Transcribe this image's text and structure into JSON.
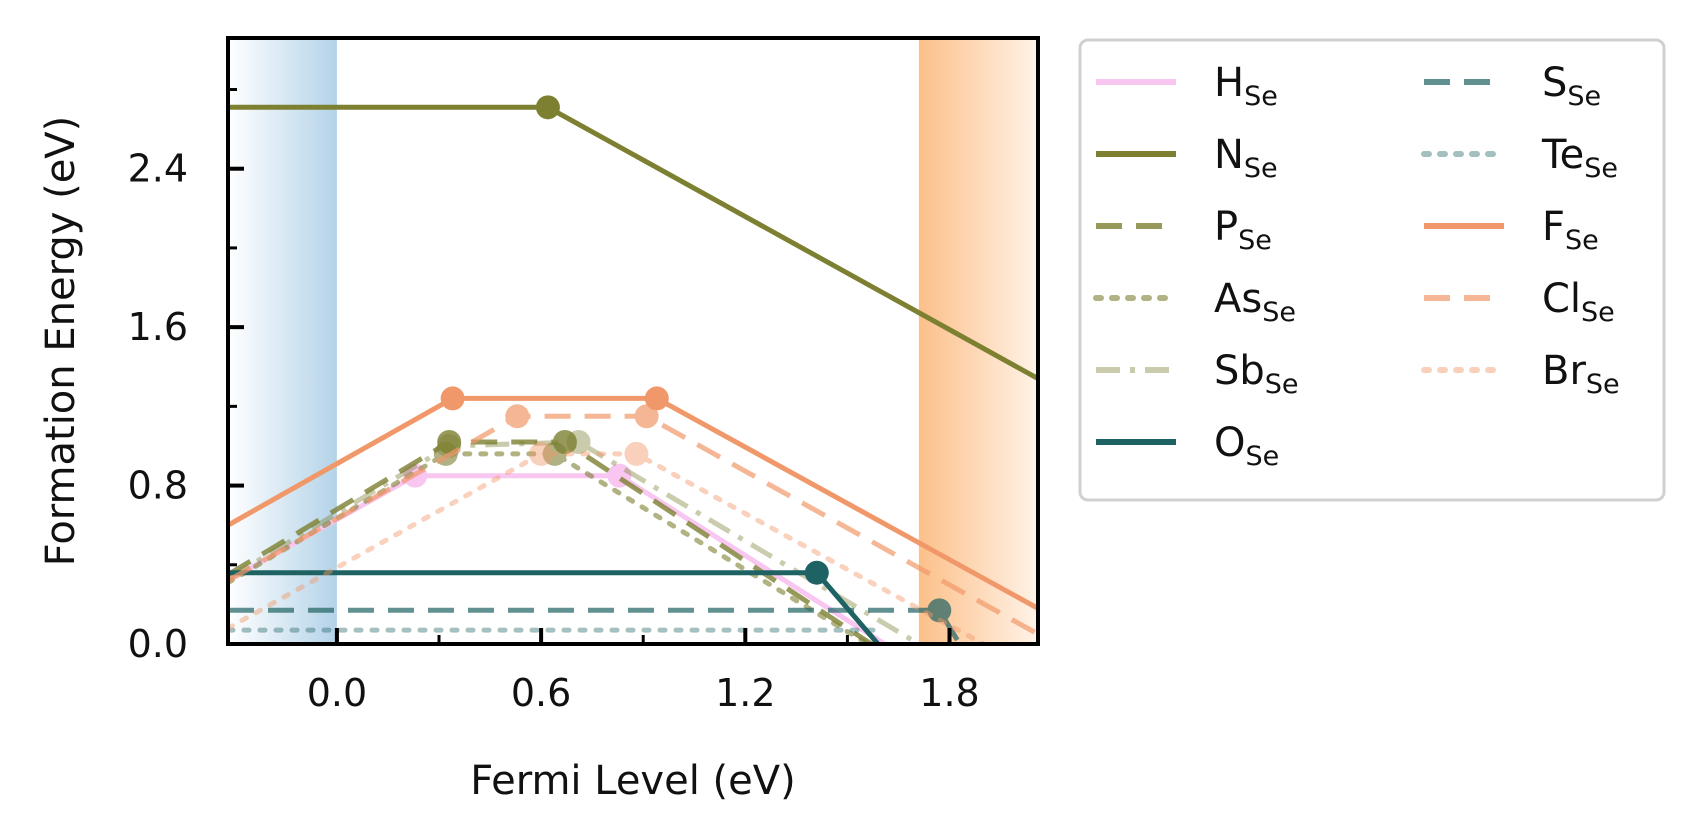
{
  "chart_data": {
    "type": "line",
    "xlabel": "Fermi Level (eV)",
    "ylabel": "Formation Energy (eV)",
    "xlim": [
      -0.32,
      2.06
    ],
    "ylim": [
      0.0,
      3.06
    ],
    "xticks": [
      0.0,
      0.6,
      1.2,
      1.8
    ],
    "xtick_labels": [
      "0.0",
      "0.6",
      "1.2",
      "1.8"
    ],
    "yticks": [
      0.0,
      0.8,
      1.6,
      2.4
    ],
    "ytick_labels": [
      "0.0",
      "0.8",
      "1.6",
      "2.4"
    ],
    "grid": false,
    "legend_position": "outside-right",
    "bands": [
      {
        "name": "valence-band-region",
        "x0": -0.32,
        "x1": 0.0,
        "color": "#b4d3e8",
        "fade_to": "left"
      },
      {
        "name": "conduction-band-region",
        "x0": 1.71,
        "x1": 2.06,
        "color": "#fcc08a",
        "fade_to": "right"
      }
    ],
    "series": [
      {
        "name": "H",
        "sub": "Se",
        "color": "#f8c6f0",
        "dash": "solid",
        "opacity": 1.0,
        "width": 5,
        "points": [
          [
            -0.32,
            0.32
          ],
          [
            0.23,
            0.85
          ],
          [
            0.83,
            0.85
          ],
          [
            1.61,
            0.0
          ]
        ],
        "markers": [
          [
            0.23,
            0.85
          ],
          [
            0.83,
            0.85
          ]
        ]
      },
      {
        "name": "N",
        "sub": "Se",
        "color": "#7d8031",
        "dash": "solid",
        "opacity": 1.0,
        "width": 5,
        "points": [
          [
            -0.32,
            2.71
          ],
          [
            0.62,
            2.71
          ],
          [
            2.06,
            1.34
          ]
        ],
        "markers": [
          [
            0.62,
            2.71
          ]
        ]
      },
      {
        "name": "P",
        "sub": "Se",
        "color": "#7d8031",
        "dash": "dashed",
        "opacity": 0.8,
        "width": 5,
        "points": [
          [
            -0.32,
            0.35
          ],
          [
            0.33,
            1.02
          ],
          [
            0.67,
            1.02
          ],
          [
            1.57,
            0.0
          ]
        ],
        "markers": [
          [
            0.33,
            1.02
          ],
          [
            0.67,
            1.02
          ]
        ]
      },
      {
        "name": "As",
        "sub": "Se",
        "color": "#7d8031",
        "dash": "dotted",
        "opacity": 0.6,
        "width": 5,
        "points": [
          [
            -0.32,
            0.31
          ],
          [
            0.32,
            0.96
          ],
          [
            0.64,
            0.96
          ],
          [
            1.56,
            0.0
          ]
        ],
        "markers": [
          [
            0.32,
            0.96
          ],
          [
            0.64,
            0.96
          ]
        ]
      },
      {
        "name": "Sb",
        "sub": "Se",
        "color": "#7d8031",
        "dash": "dashdot",
        "opacity": 0.4,
        "width": 5,
        "points": [
          [
            -0.32,
            0.33
          ],
          [
            0.33,
            1.0
          ],
          [
            0.71,
            1.02
          ],
          [
            1.71,
            0.0
          ]
        ],
        "markers": [
          [
            0.33,
            1.0
          ],
          [
            0.71,
            1.02
          ]
        ]
      },
      {
        "name": "O",
        "sub": "Se",
        "color": "#1f6263",
        "dash": "solid",
        "opacity": 1.0,
        "width": 5,
        "points": [
          [
            -0.32,
            0.36
          ],
          [
            1.41,
            0.36
          ],
          [
            1.59,
            0.0
          ]
        ],
        "markers": [
          [
            1.41,
            0.36
          ]
        ]
      },
      {
        "name": "S",
        "sub": "Se",
        "color": "#1f6263",
        "dash": "dashed",
        "opacity": 0.7,
        "width": 5,
        "points": [
          [
            -0.32,
            0.17
          ],
          [
            1.77,
            0.17
          ],
          [
            1.83,
            0.0
          ]
        ],
        "markers": [
          [
            1.77,
            0.17
          ]
        ]
      },
      {
        "name": "Te",
        "sub": "Se",
        "color": "#1f6263",
        "dash": "dotted",
        "opacity": 0.4,
        "width": 5,
        "points": [
          [
            -0.32,
            0.07
          ],
          [
            1.6,
            0.07
          ]
        ],
        "markers": []
      },
      {
        "name": "F",
        "sub": "Se",
        "color": "#f1986a",
        "dash": "solid",
        "opacity": 1.0,
        "width": 5,
        "points": [
          [
            -0.32,
            0.6
          ],
          [
            0.34,
            1.24
          ],
          [
            0.94,
            1.24
          ],
          [
            2.06,
            0.18
          ]
        ],
        "markers": [
          [
            0.34,
            1.24
          ],
          [
            0.94,
            1.24
          ]
        ]
      },
      {
        "name": "Cl",
        "sub": "Se",
        "color": "#f1986a",
        "dash": "dashed",
        "opacity": 0.7,
        "width": 5,
        "points": [
          [
            -0.32,
            0.32
          ],
          [
            0.53,
            1.15
          ],
          [
            0.91,
            1.15
          ],
          [
            2.06,
            0.05
          ]
        ],
        "markers": [
          [
            0.53,
            1.15
          ],
          [
            0.91,
            1.15
          ]
        ]
      },
      {
        "name": "Br",
        "sub": "Se",
        "color": "#f1986a",
        "dash": "dotted",
        "opacity": 0.45,
        "width": 5,
        "points": [
          [
            -0.32,
            0.08
          ],
          [
            0.6,
            0.96
          ],
          [
            0.88,
            0.96
          ],
          [
            1.9,
            0.0
          ]
        ],
        "markers": [
          [
            0.6,
            0.96
          ],
          [
            0.88,
            0.96
          ]
        ]
      }
    ]
  }
}
